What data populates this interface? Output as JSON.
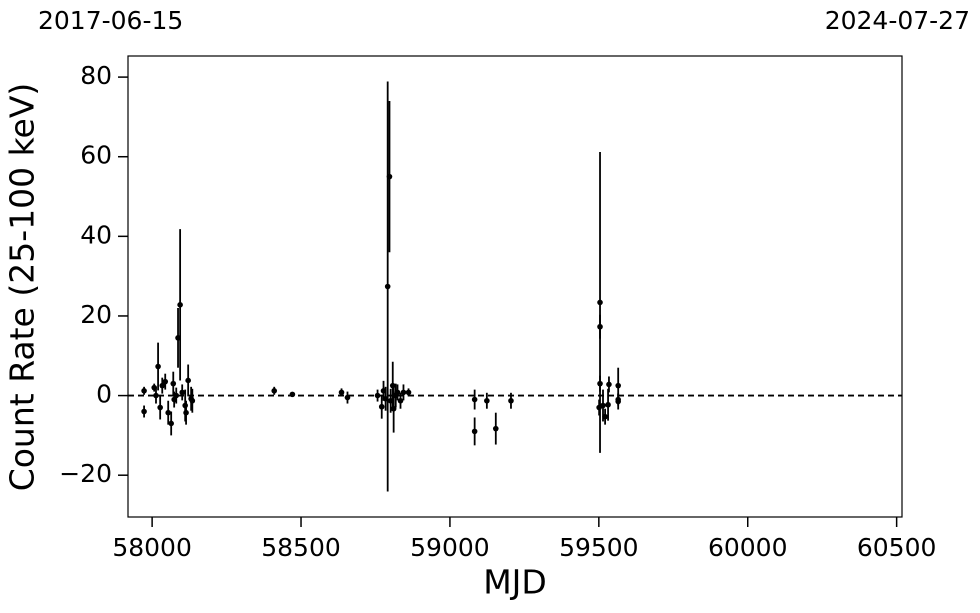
{
  "chart_data": {
    "type": "errorbar",
    "xlabel": "MJD",
    "ylabel": "Count Rate (25-100 keV)",
    "date_labels": [
      "2017-06-15",
      "2024-07-27"
    ],
    "xlim": [
      57919,
      60518
    ],
    "ylim": [
      -30.5,
      85.3
    ],
    "xticks": [
      58000,
      58500,
      59000,
      59500,
      60000,
      60500
    ],
    "yticks": [
      {
        "value": -20,
        "label": "−20"
      },
      0,
      20,
      40,
      60,
      80
    ],
    "hline": 0,
    "color": "#000000",
    "x": [
      57973,
      57973,
      58007,
      58013,
      58020,
      58027,
      58034,
      58044,
      58054,
      58064,
      58071,
      58074,
      58081,
      58087,
      58094,
      58101,
      58111,
      58114,
      58121,
      58131,
      58135,
      58410,
      58471,
      58636,
      58656,
      58757,
      58771,
      58777,
      58784,
      58791,
      58797,
      58801,
      58808,
      58811,
      58818,
      58824,
      58834,
      58844,
      58861,
      59083,
      59083,
      59124,
      59154,
      59205,
      59501,
      59504,
      59504,
      59504,
      59514,
      59521,
      59531,
      59534,
      59565,
      59565,
      59565
    ],
    "values": [
      1.2,
      -4,
      2,
      0,
      7.3,
      -3,
      2.5,
      3.5,
      -4.3,
      -7,
      3,
      -1,
      0,
      14.5,
      22.8,
      0.8,
      -2.5,
      -4.3,
      3.8,
      -0.8,
      -1.3,
      1.2,
      0.3,
      0.8,
      -0.5,
      0,
      -2.8,
      1.2,
      -0.8,
      27.4,
      55,
      -1.3,
      2.5,
      -3.3,
      0,
      0.8,
      -1.3,
      0.8,
      0.8,
      -1,
      -9,
      -1.3,
      -8.3,
      -1.3,
      -3,
      23.4,
      17.3,
      3,
      -2.5,
      -5.3,
      -2.3,
      2.8,
      2.5,
      -1.5,
      -1
    ],
    "errors": [
      1,
      1.5,
      1,
      2,
      6,
      3,
      2,
      2,
      3,
      3,
      3,
      2,
      2,
      7.5,
      19,
      2,
      4,
      3,
      4,
      3,
      3,
      1,
      0.5,
      1,
      1.5,
      1.5,
      3,
      2.5,
      3,
      51.5,
      19,
      3,
      6,
      6,
      3,
      2,
      2,
      2,
      1,
      2.5,
      3.5,
      2,
      4,
      2,
      2,
      37.8,
      3,
      2,
      4,
      2,
      4,
      2,
      4.5,
      2,
      1.5
    ]
  }
}
